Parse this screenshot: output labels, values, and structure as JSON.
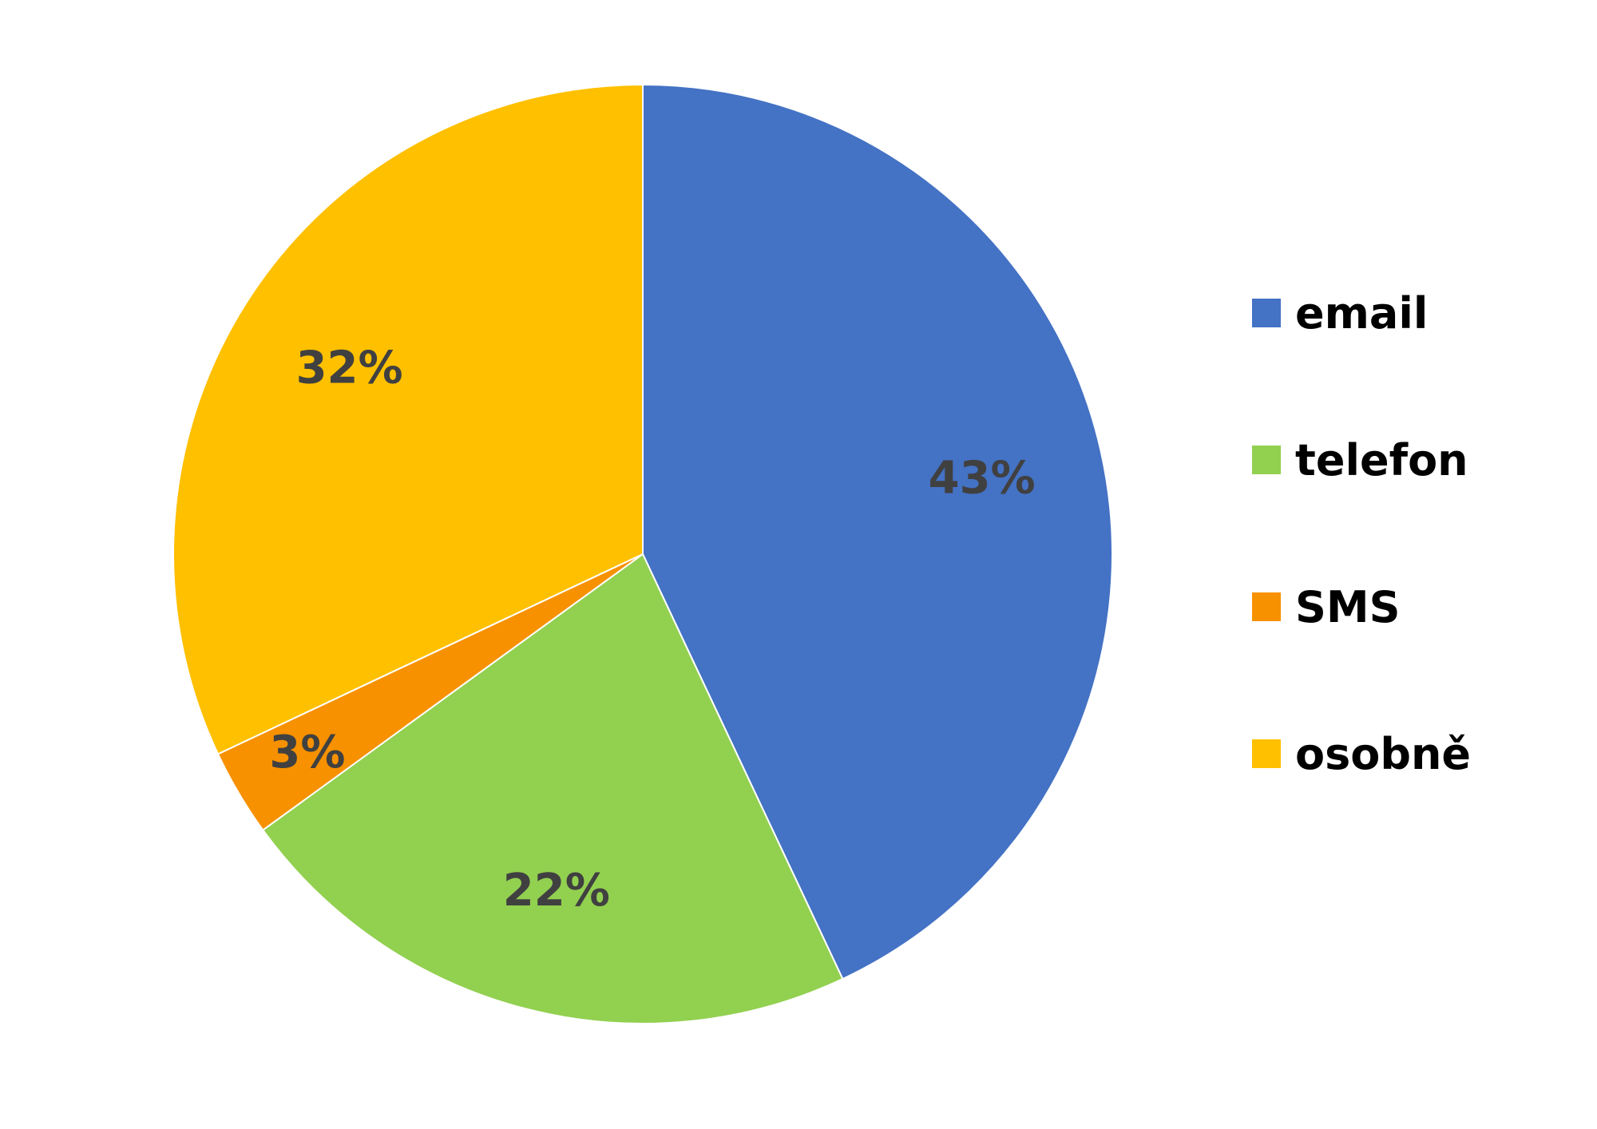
{
  "chart_data": {
    "type": "pie",
    "categories": [
      "email",
      "telefon",
      "SMS",
      "osobně"
    ],
    "values": [
      43,
      22,
      3,
      32
    ],
    "data_labels": [
      "43%",
      "22%",
      "3%",
      "32%"
    ],
    "colors": [
      "#4472C4",
      "#92D050",
      "#F79100",
      "#FFC000"
    ],
    "start_angle_deg": 0,
    "direction": "clockwise",
    "legend_position": "right",
    "title": ""
  }
}
